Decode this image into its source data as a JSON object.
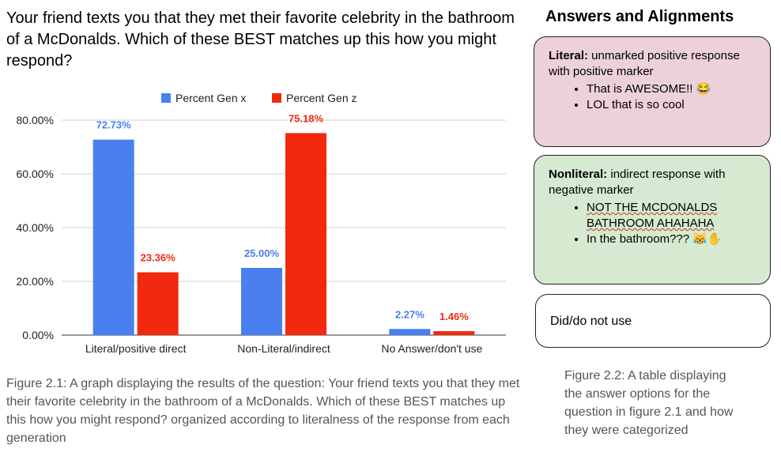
{
  "question": "Your friend texts you that they met their favorite celebrity in the bathroom of a McDonalds. Which of these BEST matches up this how you might respond?",
  "chart_data": {
    "type": "bar",
    "categories": [
      "Literal/positive direct",
      "Non-Literal/indirect",
      "No Answer/don't use"
    ],
    "series": [
      {
        "name": "Percent Gen x",
        "values": [
          72.73,
          25.0,
          2.27
        ],
        "labels": [
          "72.73%",
          "25.00%",
          "2.27%"
        ],
        "color": "#4a7ff0"
      },
      {
        "name": "Percent Gen z",
        "values": [
          23.36,
          75.18,
          1.46
        ],
        "labels": [
          "23.36%",
          "75.18%",
          "1.46%"
        ],
        "color": "#f2290f"
      }
    ],
    "yticks": [
      0,
      20,
      40,
      60,
      80
    ],
    "ytick_labels": [
      "0.00%",
      "20.00%",
      "40.00%",
      "60.00%",
      "80.00%"
    ],
    "ylim": [
      0,
      80
    ],
    "grid": true,
    "legend_position": "top"
  },
  "caption_left": "Figure 2.1: A graph displaying the results of the question: Your friend texts you that they met their favorite celebrity in the bathroom of a McDonalds. Which of these BEST matches up this how you might respond? organized according to literalness of the response from each generation",
  "right_panel": {
    "title": "Answers and Alignments",
    "literal": {
      "heading": "Literal:",
      "desc": " unmarked positive response with positive marker",
      "items": [
        "That is AWESOME!! 😂",
        "LOL that is so cool"
      ]
    },
    "nonliteral": {
      "heading": "Nonliteral:",
      "desc": " indirect response with negative marker",
      "items": [
        "NOT THE MCDONALDS BATHROOM AHAHAHA",
        "In the bathroom??? 😹✋"
      ]
    },
    "unused": "Did/do not use",
    "caption": "Figure 2.2: A table displaying the answer options for the question in figure 2.1 and how they were categorized"
  }
}
